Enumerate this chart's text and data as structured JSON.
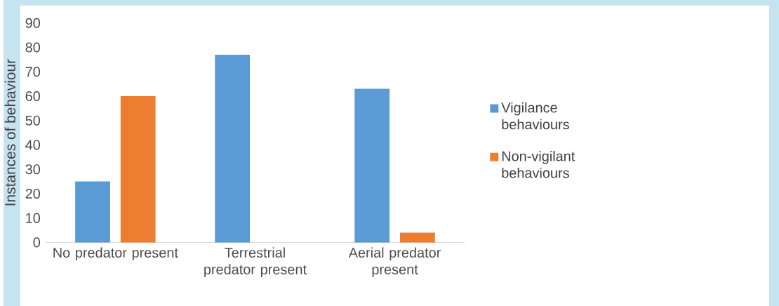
{
  "chart_data": {
    "type": "bar",
    "ylabel": "Instances of behaviour",
    "categories": [
      "No predator present",
      "Terrestrial predator present",
      "Aerial predator present"
    ],
    "series": [
      {
        "name": "Vigilance behaviours",
        "color": "#5b9bd5",
        "values": [
          25,
          77,
          63
        ]
      },
      {
        "name": "Non-vigilant behaviours",
        "color": "#ed7d31",
        "values": [
          60,
          0,
          4
        ]
      }
    ],
    "ylim": [
      0,
      90
    ],
    "yticks": [
      0,
      10,
      20,
      30,
      40,
      50,
      60,
      70,
      80,
      90
    ],
    "grid": false,
    "legend": "right"
  }
}
